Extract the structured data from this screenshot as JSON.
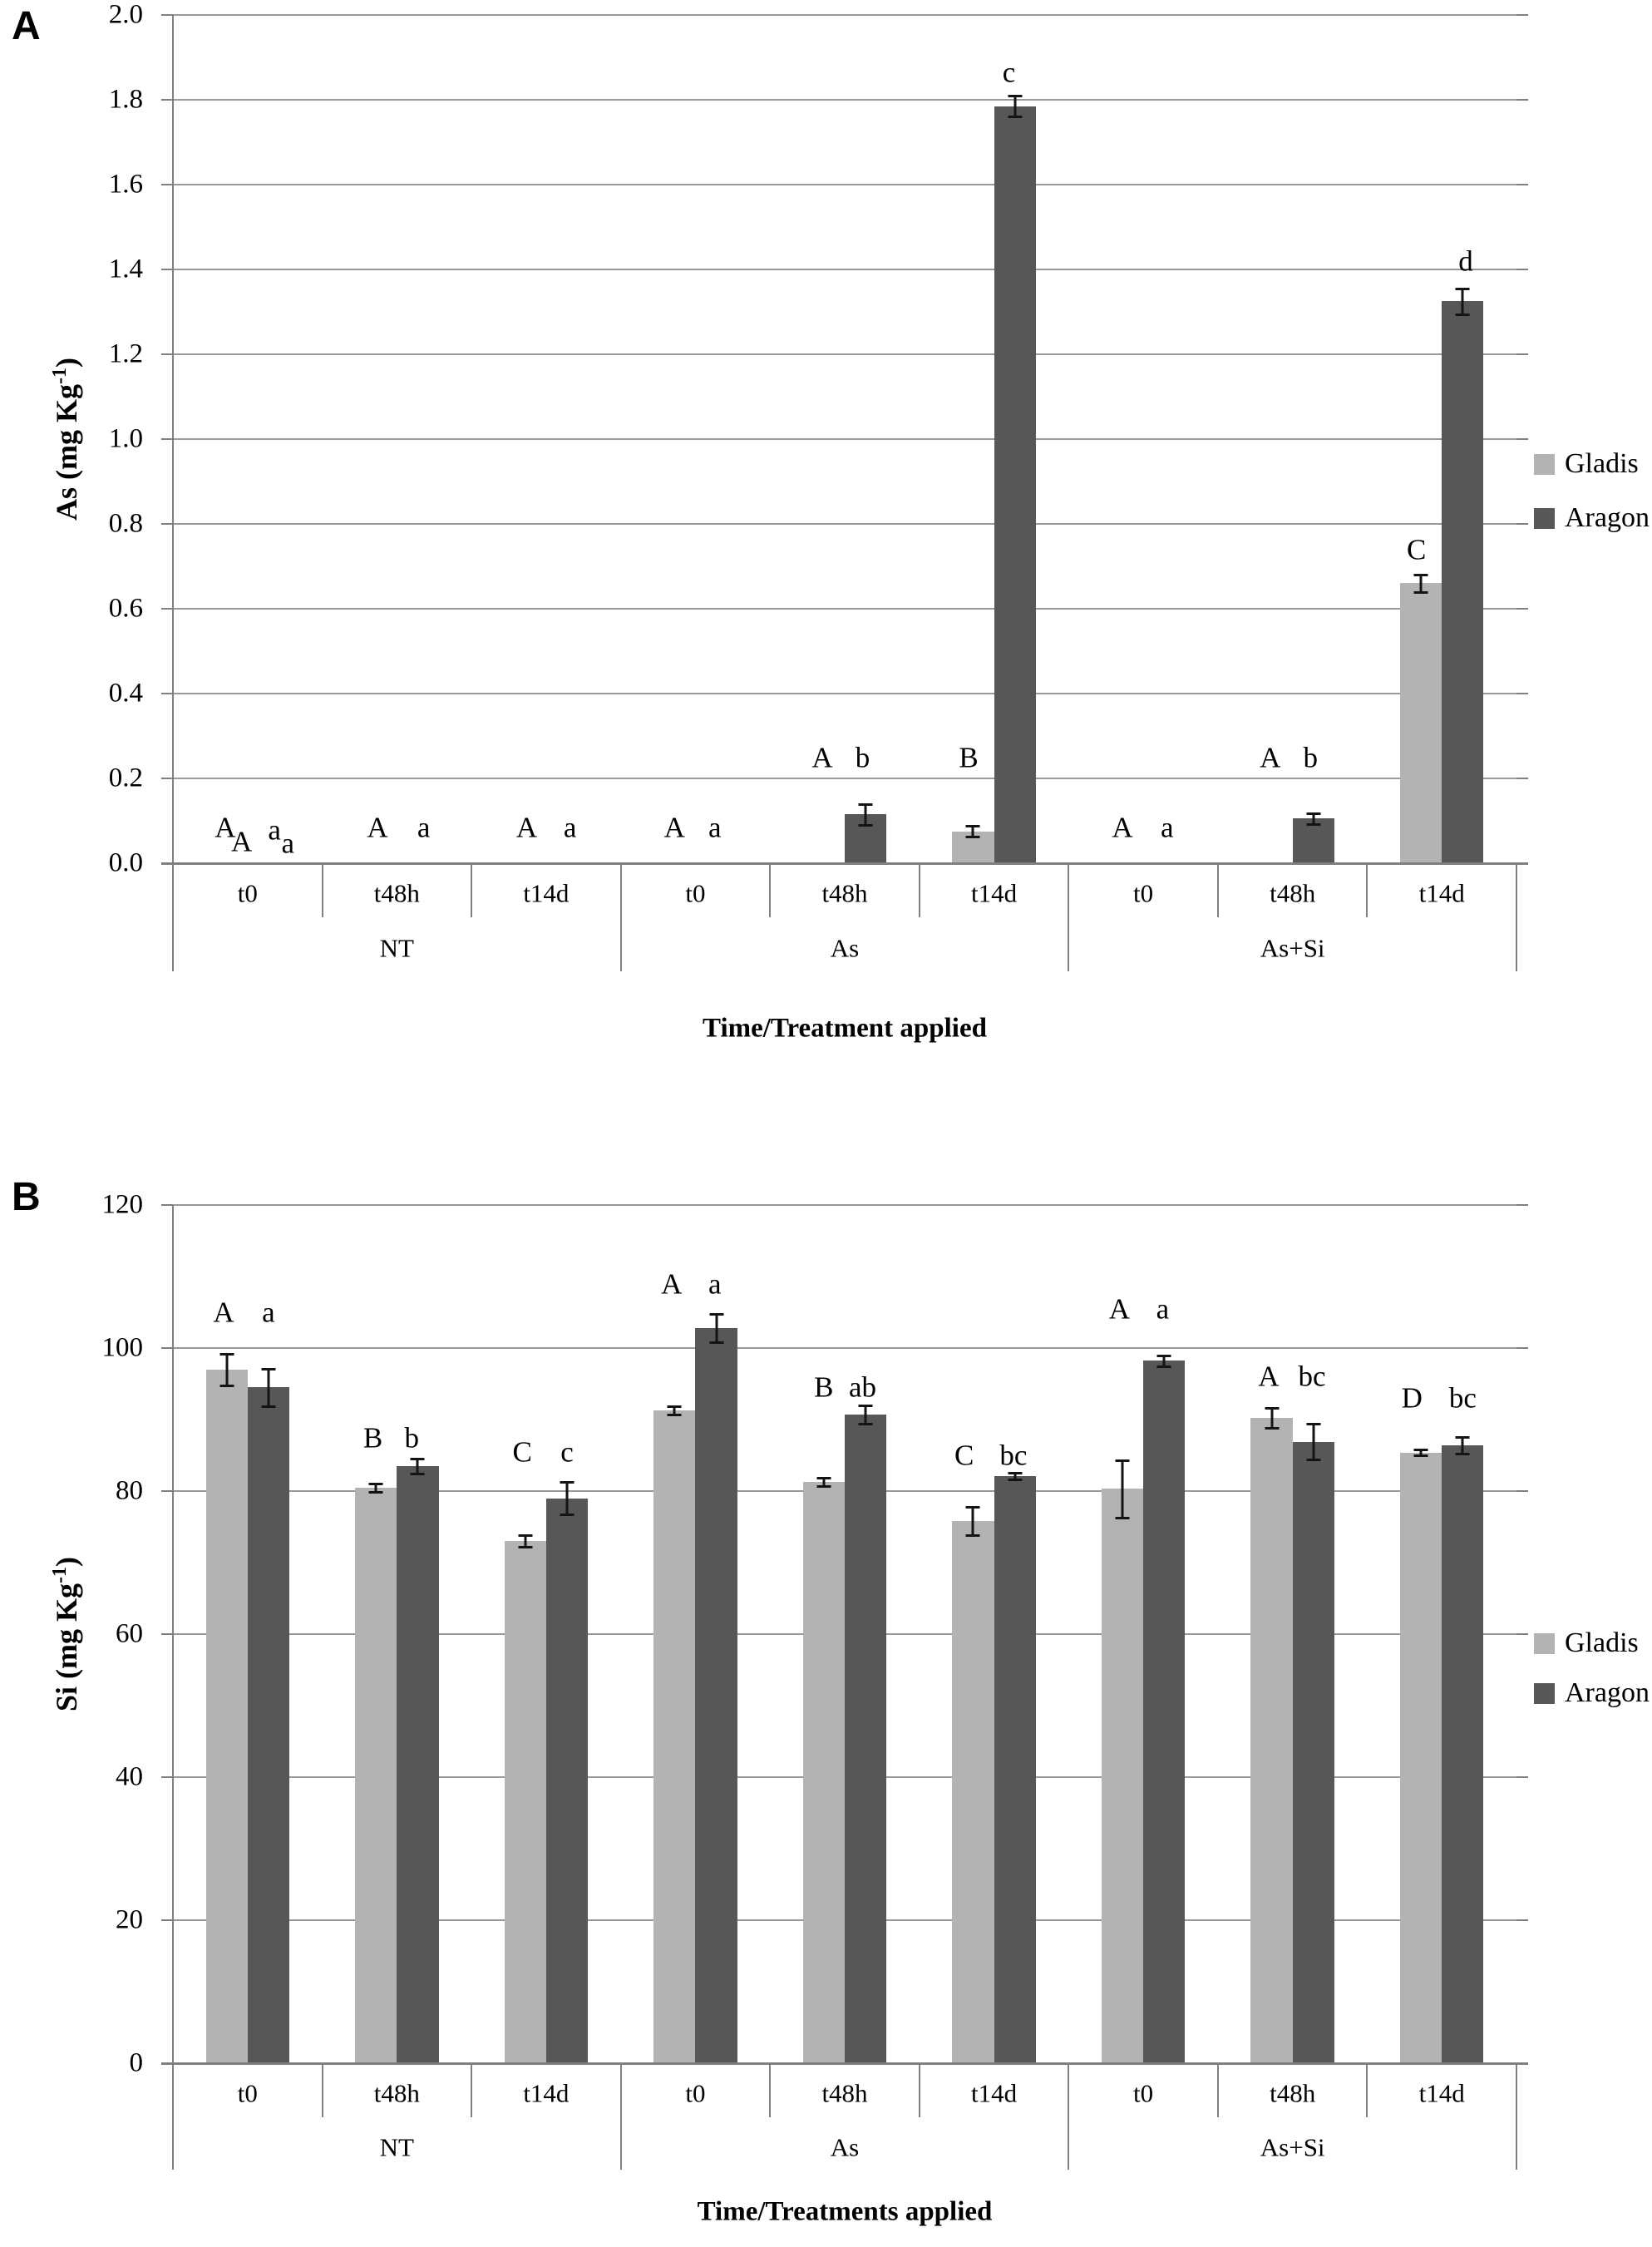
{
  "figure_title": "",
  "legend": {
    "entries": [
      "Gladis",
      "Aragon"
    ],
    "position": "right"
  },
  "colors": {
    "gladis": "#b3b3b3",
    "aragon": "#575757",
    "gridline": "#999999",
    "axis": "#808080",
    "error_bar": "#141414",
    "background": "#ffffff"
  },
  "chart_data": [
    {
      "id": "A",
      "panel_label": "A",
      "type": "bar",
      "title": "",
      "ylabel": "As (mg Kg-1)",
      "ylabel_base": "As  (mg Kg",
      "ylabel_sup": "-1",
      "ylabel_end": ")",
      "xlabel": "Time/Treatment applied",
      "ylim": [
        0,
        2.0
      ],
      "ytick_step": 0.2,
      "yticks": [
        "0.0",
        "0.2",
        "0.4",
        "0.6",
        "0.8",
        "1.0",
        "1.2",
        "1.4",
        "1.6",
        "1.8",
        "2.0"
      ],
      "grid": "horizontal",
      "groups": [
        "NT",
        "As",
        "As+Si"
      ],
      "times": [
        "t0",
        "t48h",
        "t14d"
      ],
      "legend_entries": [
        "Gladis",
        "Aragon"
      ],
      "series": [
        {
          "name": "Gladis",
          "color": "#b3b3b3",
          "values": [
            0,
            0,
            0,
            0,
            0,
            0.075,
            0,
            0,
            0.66
          ],
          "errors": [
            0,
            0,
            0,
            0,
            0,
            0.013,
            0,
            0,
            0.02
          ]
        },
        {
          "name": "Aragon",
          "color": "#575757",
          "values": [
            0,
            0,
            0,
            0,
            0.115,
            1.785,
            0,
            0.105,
            1.325
          ],
          "errors": [
            0,
            0,
            0,
            0,
            0.025,
            0.025,
            0,
            0.013,
            0.03
          ]
        }
      ],
      "significance_letters": [
        [
          {
            "t": "A",
            "x": 0.35,
            "y": 0.084
          },
          {
            "t": "A",
            "x": 0.46,
            "y": 0.051
          },
          {
            "t": "a",
            "x": 0.68,
            "y": 0.079
          },
          {
            "t": "a",
            "x": 0.77,
            "y": 0.048
          }
        ],
        [
          {
            "t": "A",
            "x": 0.37,
            "y": 0.085
          },
          {
            "t": "a",
            "x": 0.68,
            "y": 0.085
          }
        ],
        [
          {
            "t": "A",
            "x": 0.37,
            "y": 0.085
          },
          {
            "t": "a",
            "x": 0.66,
            "y": 0.085
          }
        ],
        [
          {
            "t": "A",
            "x": 0.36,
            "y": 0.085
          },
          {
            "t": "a",
            "x": 0.63,
            "y": 0.085
          }
        ],
        [
          {
            "t": "A",
            "x": 0.35,
            "y": 0.25
          },
          {
            "t": "b",
            "x": 0.62,
            "y": 0.25
          }
        ],
        [
          {
            "t": "B",
            "x": 0.33,
            "y": 0.25
          },
          {
            "t": "c",
            "x": 0.6,
            "y": 1.865
          }
        ],
        [
          {
            "t": "A",
            "x": 0.36,
            "y": 0.085
          },
          {
            "t": "a",
            "x": 0.66,
            "y": 0.085
          }
        ],
        [
          {
            "t": "A",
            "x": 0.35,
            "y": 0.25
          },
          {
            "t": "b",
            "x": 0.62,
            "y": 0.25
          }
        ],
        [
          {
            "t": "C",
            "x": 0.33,
            "y": 0.74
          },
          {
            "t": "d",
            "x": 0.66,
            "y": 1.42
          }
        ]
      ]
    },
    {
      "id": "B",
      "panel_label": "B",
      "type": "bar",
      "title": "",
      "ylabel": "Si (mg Kg-1)",
      "ylabel_base": "Si  (mg Kg",
      "ylabel_sup": "-1",
      "ylabel_end": ")",
      "xlabel": "Time/Treatments applied",
      "ylim": [
        0,
        120
      ],
      "ytick_step": 20,
      "yticks": [
        "0",
        "20",
        "40",
        "60",
        "80",
        "100",
        "120"
      ],
      "grid": "horizontal",
      "groups": [
        "NT",
        "As",
        "As+Si"
      ],
      "times": [
        "t0",
        "t48h",
        "t14d"
      ],
      "legend_entries": [
        "Gladis",
        "Aragon"
      ],
      "series": [
        {
          "name": "Gladis",
          "color": "#b3b3b3",
          "values": [
            97,
            80.5,
            73,
            91.3,
            81.3,
            75.8,
            80.3,
            90.2,
            85.4
          ],
          "errors": [
            2.2,
            0.6,
            0.8,
            0.6,
            0.6,
            2.0,
            4.0,
            1.4,
            0.4
          ]
        },
        {
          "name": "Aragon",
          "color": "#575757",
          "values": [
            94.5,
            83.5,
            79,
            102.8,
            90.7,
            82.1,
            98.2,
            86.9,
            86.4
          ],
          "errors": [
            2.6,
            1.0,
            2.3,
            2.0,
            1.3,
            0.5,
            0.7,
            2.5,
            1.2
          ]
        }
      ],
      "significance_letters": [
        [
          {
            "t": "A",
            "x": 0.34,
            "y": 105
          },
          {
            "t": "a",
            "x": 0.64,
            "y": 105
          }
        ],
        [
          {
            "t": "B",
            "x": 0.34,
            "y": 87.5
          },
          {
            "t": "b",
            "x": 0.6,
            "y": 87.5
          }
        ],
        [
          {
            "t": "C",
            "x": 0.34,
            "y": 85.5
          },
          {
            "t": "c",
            "x": 0.64,
            "y": 85.5
          }
        ],
        [
          {
            "t": "A",
            "x": 0.34,
            "y": 109
          },
          {
            "t": "a",
            "x": 0.63,
            "y": 109
          }
        ],
        [
          {
            "t": "B",
            "x": 0.36,
            "y": 94.5
          },
          {
            "t": "ab",
            "x": 0.62,
            "y": 94.5
          }
        ],
        [
          {
            "t": "C",
            "x": 0.3,
            "y": 85
          },
          {
            "t": "bc",
            "x": 0.63,
            "y": 85
          }
        ],
        [
          {
            "t": "A",
            "x": 0.34,
            "y": 105.5
          },
          {
            "t": "a",
            "x": 0.63,
            "y": 105.5
          }
        ],
        [
          {
            "t": "A",
            "x": 0.34,
            "y": 96
          },
          {
            "t": "bc",
            "x": 0.63,
            "y": 96
          }
        ],
        [
          {
            "t": "D",
            "x": 0.3,
            "y": 93
          },
          {
            "t": "bc",
            "x": 0.64,
            "y": 93
          }
        ]
      ]
    }
  ]
}
